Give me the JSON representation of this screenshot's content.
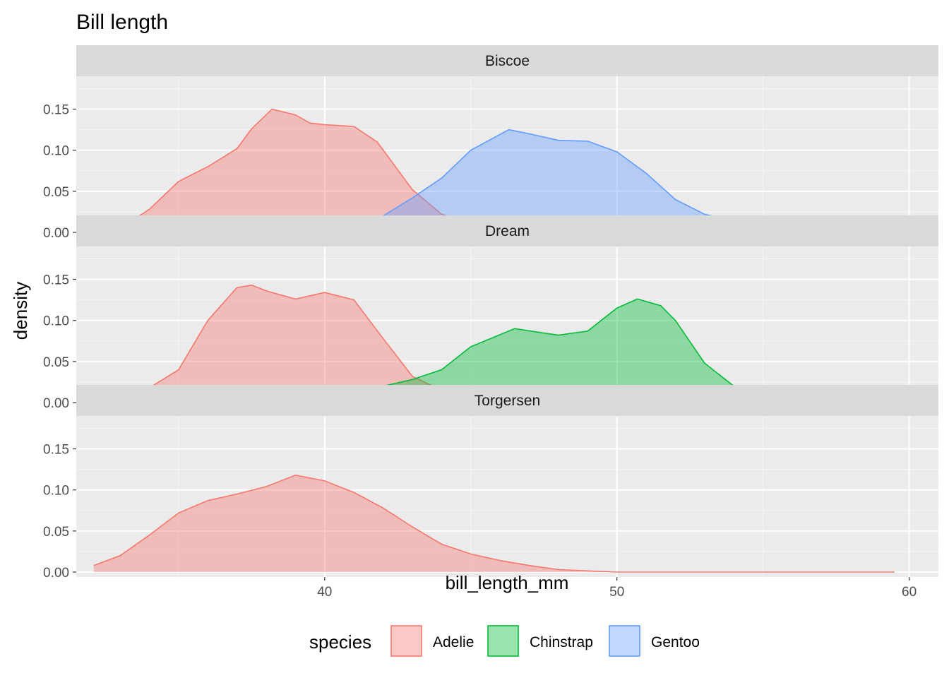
{
  "chart_data": {
    "type": "area",
    "title": "Bill length",
    "xlabel": "bill_length_mm",
    "ylabel": "density",
    "xlim": [
      31.5,
      61
    ],
    "ylim": [
      -0.006,
      0.19
    ],
    "x_ticks": [
      40,
      50,
      60
    ],
    "y_ticks": [
      "0.00",
      "0.05",
      "0.10",
      "0.15"
    ],
    "grid": true,
    "legend": {
      "title": "species",
      "position": "bottom",
      "items": [
        {
          "name": "Adelie",
          "color": "#F8766D"
        },
        {
          "name": "Chinstrap",
          "color": "#00BA38"
        },
        {
          "name": "Gentoo",
          "color": "#619CFF"
        }
      ]
    },
    "panels": [
      {
        "label": "Biscoe",
        "series": [
          {
            "name": "Adelie",
            "color": "#F8766D",
            "points": [
              [
                32.1,
                0.002
              ],
              [
                33,
                0.005
              ],
              [
                34,
                0.028
              ],
              [
                35,
                0.062
              ],
              [
                36,
                0.08
              ],
              [
                37,
                0.102
              ],
              [
                37.5,
                0.126
              ],
              [
                38.2,
                0.15
              ],
              [
                39,
                0.143
              ],
              [
                39.5,
                0.133
              ],
              [
                40,
                0.131
              ],
              [
                41,
                0.129
              ],
              [
                41.8,
                0.11
              ],
              [
                43,
                0.052
              ],
              [
                44,
                0.022
              ],
              [
                45,
                0.012
              ],
              [
                46,
                0.01
              ],
              [
                47,
                0.005
              ],
              [
                48,
                0.002
              ],
              [
                50,
                0.001
              ],
              [
                52,
                0.0
              ],
              [
                55,
                0.0
              ],
              [
                59.5,
                0.0
              ]
            ]
          },
          {
            "name": "Gentoo",
            "color": "#619CFF",
            "points": [
              [
                32.1,
                0.0
              ],
              [
                36,
                0.0
              ],
              [
                38,
                0.001
              ],
              [
                40,
                0.003
              ],
              [
                41,
                0.008
              ],
              [
                42,
                0.02
              ],
              [
                43,
                0.042
              ],
              [
                44,
                0.066
              ],
              [
                45,
                0.1
              ],
              [
                46.3,
                0.125
              ],
              [
                47,
                0.12
              ],
              [
                48,
                0.112
              ],
              [
                49,
                0.111
              ],
              [
                50,
                0.098
              ],
              [
                51,
                0.072
              ],
              [
                52,
                0.04
              ],
              [
                53,
                0.022
              ],
              [
                54,
                0.014
              ],
              [
                55,
                0.012
              ],
              [
                56,
                0.01
              ],
              [
                57,
                0.006
              ],
              [
                58,
                0.004
              ],
              [
                59.5,
                0.004
              ]
            ]
          }
        ]
      },
      {
        "label": "Dream",
        "series": [
          {
            "name": "Adelie",
            "color": "#F8766D",
            "points": [
              [
                32.1,
                0.012
              ],
              [
                33,
                0.015
              ],
              [
                34,
                0.018
              ],
              [
                35,
                0.04
              ],
              [
                36,
                0.1
              ],
              [
                37,
                0.14
              ],
              [
                37.5,
                0.143
              ],
              [
                38,
                0.136
              ],
              [
                39,
                0.126
              ],
              [
                40,
                0.134
              ],
              [
                41,
                0.125
              ],
              [
                42,
                0.078
              ],
              [
                43,
                0.032
              ],
              [
                44,
                0.015
              ],
              [
                45,
                0.007
              ],
              [
                46,
                0.002
              ],
              [
                48,
                0.0
              ],
              [
                52,
                0.0
              ],
              [
                59.5,
                0.0
              ]
            ]
          },
          {
            "name": "Chinstrap",
            "color": "#00BA38",
            "points": [
              [
                32.1,
                0.0
              ],
              [
                38,
                0.0
              ],
              [
                39,
                0.001
              ],
              [
                40,
                0.005
              ],
              [
                41,
                0.012
              ],
              [
                42,
                0.02
              ],
              [
                43,
                0.028
              ],
              [
                44,
                0.04
              ],
              [
                45,
                0.068
              ],
              [
                46.5,
                0.09
              ],
              [
                48,
                0.082
              ],
              [
                49,
                0.087
              ],
              [
                50,
                0.115
              ],
              [
                50.7,
                0.126
              ],
              [
                51.5,
                0.118
              ],
              [
                52,
                0.1
              ],
              [
                53,
                0.048
              ],
              [
                54,
                0.02
              ],
              [
                55,
                0.01
              ],
              [
                56,
                0.008
              ],
              [
                57,
                0.007
              ],
              [
                58,
                0.006
              ],
              [
                59.5,
                0.002
              ]
            ]
          }
        ]
      },
      {
        "label": "Torgersen",
        "series": [
          {
            "name": "Adelie",
            "color": "#F8766D",
            "points": [
              [
                32.1,
                0.008
              ],
              [
                33,
                0.02
              ],
              [
                34,
                0.045
              ],
              [
                35,
                0.072
              ],
              [
                36,
                0.087
              ],
              [
                37,
                0.095
              ],
              [
                38,
                0.104
              ],
              [
                39,
                0.118
              ],
              [
                40,
                0.111
              ],
              [
                41,
                0.097
              ],
              [
                42,
                0.078
              ],
              [
                43,
                0.055
              ],
              [
                44,
                0.034
              ],
              [
                45,
                0.022
              ],
              [
                46,
                0.014
              ],
              [
                47,
                0.008
              ],
              [
                48,
                0.003
              ],
              [
                50,
                0.0
              ],
              [
                52,
                0.0
              ],
              [
                59.5,
                0.0
              ]
            ]
          }
        ]
      }
    ]
  }
}
